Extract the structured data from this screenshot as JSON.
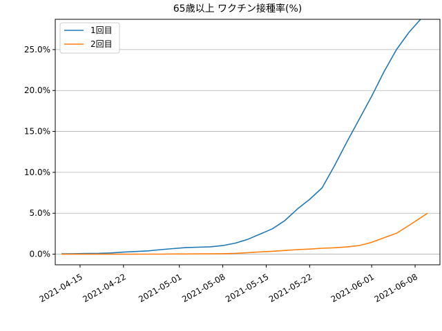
{
  "chart_data": {
    "type": "line",
    "title": "65歳以上 ワクチン接種率(%)",
    "xlabel": "",
    "ylabel": "",
    "xlim": [
      "2021-04-11",
      "2021-06-12"
    ],
    "ylim": [
      -1.3,
      28.7
    ],
    "yticks": [
      0,
      5,
      10,
      15,
      20,
      25
    ],
    "ytick_labels": [
      "0.0%",
      "5.0%",
      "10.0%",
      "15.0%",
      "20.0%",
      "25.0%"
    ],
    "xticks": [
      "2021-04-15",
      "2021-04-22",
      "2021-05-01",
      "2021-05-08",
      "2021-05-15",
      "2021-05-22",
      "2021-06-01",
      "2021-06-08"
    ],
    "grid": "horizontal",
    "legend_position": "top-left",
    "x": [
      "2021-04-12",
      "2021-04-14",
      "2021-04-16",
      "2021-04-18",
      "2021-04-20",
      "2021-04-22",
      "2021-04-24",
      "2021-04-26",
      "2021-04-28",
      "2021-04-30",
      "2021-05-02",
      "2021-05-04",
      "2021-05-06",
      "2021-05-08",
      "2021-05-10",
      "2021-05-12",
      "2021-05-14",
      "2021-05-16",
      "2021-05-18",
      "2021-05-20",
      "2021-05-22",
      "2021-05-24",
      "2021-05-26",
      "2021-05-28",
      "2021-05-30",
      "2021-06-01",
      "2021-06-03",
      "2021-06-05",
      "2021-06-07",
      "2021-06-09",
      "2021-06-10"
    ],
    "series": [
      {
        "name": "1回目",
        "color": "#1f77b4",
        "values": [
          0.05,
          0.06,
          0.08,
          0.1,
          0.15,
          0.25,
          0.33,
          0.4,
          0.55,
          0.68,
          0.8,
          0.85,
          0.9,
          1.05,
          1.35,
          1.8,
          2.45,
          3.1,
          4.1,
          5.5,
          6.7,
          8.1,
          10.8,
          13.7,
          16.5,
          19.3,
          22.3,
          25.0,
          27.1,
          28.8,
          29.2
        ]
      },
      {
        "name": "2回目",
        "color": "#ff7f0e",
        "values": [
          0.0,
          0.0,
          0.0,
          0.0,
          0.0,
          0.0,
          0.0,
          0.01,
          0.01,
          0.02,
          0.02,
          0.03,
          0.04,
          0.06,
          0.1,
          0.18,
          0.28,
          0.35,
          0.45,
          0.55,
          0.62,
          0.72,
          0.78,
          0.88,
          1.05,
          1.45,
          2.0,
          2.55,
          3.5,
          4.5,
          5.0
        ]
      }
    ]
  }
}
